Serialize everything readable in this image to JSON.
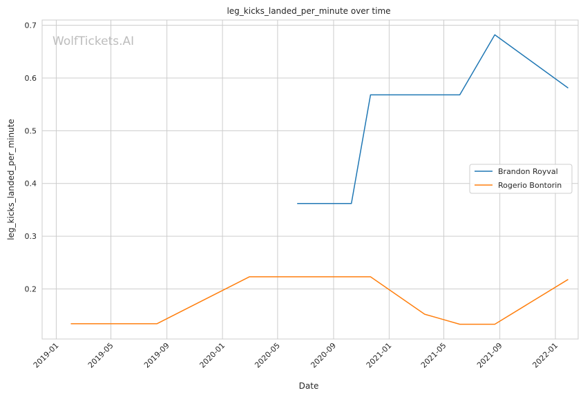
{
  "chart_data": {
    "type": "line",
    "title": "leg_kicks_landed_per_minute over time",
    "xlabel": "Date",
    "ylabel": "leg_kicks_landed_per_minute",
    "watermark": "WolfTickets.AI",
    "x_ticks": [
      "2019-01",
      "2019-05",
      "2019-09",
      "2020-01",
      "2020-05",
      "2020-09",
      "2021-01",
      "2021-05",
      "2021-09",
      "2022-01"
    ],
    "y_ticks": [
      "0.2",
      "0.3",
      "0.4",
      "0.5",
      "0.6",
      "0.7"
    ],
    "xlim": [
      "2018-12-01",
      "2022-02-20"
    ],
    "ylim": [
      0.105,
      0.71
    ],
    "grid": true,
    "legend_position": "center-right",
    "series": [
      {
        "name": "Brandon Royval",
        "color": "#1f77b4",
        "points": [
          {
            "x": "2020-06-13",
            "y": 0.362
          },
          {
            "x": "2020-10-10",
            "y": 0.362
          },
          {
            "x": "2020-11-21",
            "y": 0.568
          },
          {
            "x": "2021-06-05",
            "y": 0.568
          },
          {
            "x": "2021-08-21",
            "y": 0.682
          },
          {
            "x": "2022-01-29",
            "y": 0.581
          }
        ]
      },
      {
        "name": "Rogerio Bontorin",
        "color": "#ff7f0e",
        "points": [
          {
            "x": "2019-02-02",
            "y": 0.134
          },
          {
            "x": "2019-08-10",
            "y": 0.134
          },
          {
            "x": "2020-02-29",
            "y": 0.223
          },
          {
            "x": "2020-11-21",
            "y": 0.223
          },
          {
            "x": "2021-03-20",
            "y": 0.152
          },
          {
            "x": "2021-06-05",
            "y": 0.133
          },
          {
            "x": "2021-08-21",
            "y": 0.133
          },
          {
            "x": "2022-01-29",
            "y": 0.218
          }
        ]
      }
    ]
  }
}
